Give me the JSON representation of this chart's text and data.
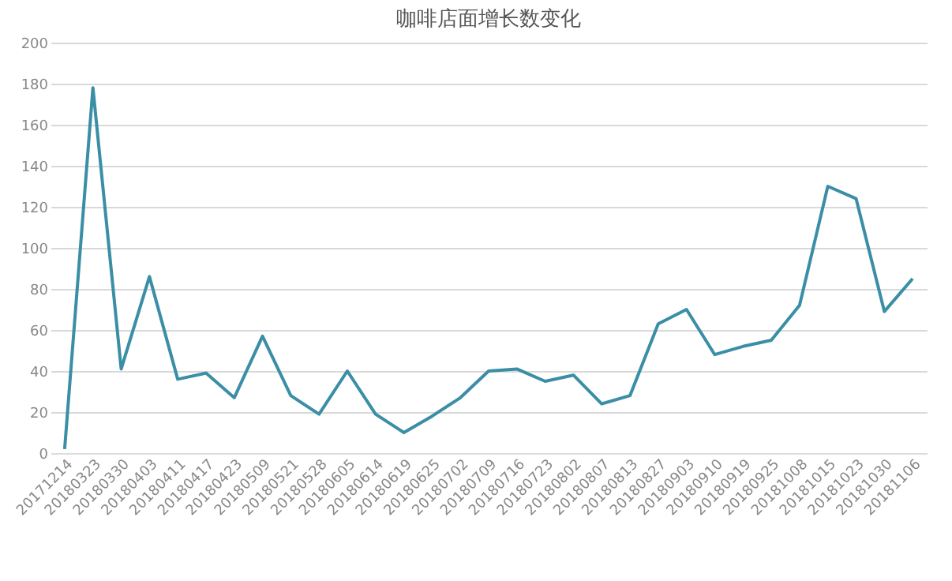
{
  "chart_data": {
    "type": "line",
    "title": "咖啡店面增长数变化",
    "categories": [
      "20171214",
      "20180323",
      "20180330",
      "20180403",
      "20180411",
      "20180417",
      "20180423",
      "20180509",
      "20180521",
      "20180528",
      "20180605",
      "20180614",
      "20180619",
      "20180625",
      "20180702",
      "20180709",
      "20180716",
      "20180723",
      "20180802",
      "20180807",
      "20180813",
      "20180827",
      "20180903",
      "20180910",
      "20180919",
      "20180925",
      "20181008",
      "20181015",
      "20181023",
      "20181030",
      "20181106"
    ],
    "series": [
      {
        "color": "#3a8ea5",
        "values": [
          2,
          178,
          41,
          86,
          36,
          39,
          27,
          57,
          28,
          19,
          40,
          19,
          10,
          18,
          27,
          40,
          41,
          35,
          38,
          24,
          28,
          63,
          70,
          48,
          52,
          55,
          72,
          130,
          124,
          69,
          85
        ]
      }
    ],
    "ylim": [
      0,
      200
    ],
    "yticks": [
      0,
      20,
      40,
      60,
      80,
      100,
      120,
      140,
      160,
      180,
      200
    ],
    "grid": "y",
    "legend": false,
    "marker": "none",
    "line_style": "solid"
  }
}
